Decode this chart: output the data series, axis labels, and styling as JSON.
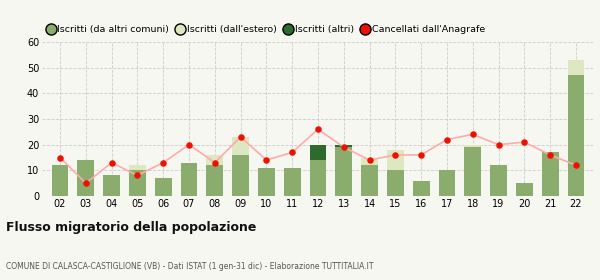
{
  "years": [
    "02",
    "03",
    "04",
    "05",
    "06",
    "07",
    "08",
    "09",
    "10",
    "11",
    "12",
    "13",
    "14",
    "15",
    "16",
    "17",
    "18",
    "19",
    "20",
    "21",
    "22"
  ],
  "iscritti_altri_comuni": [
    12,
    14,
    8,
    10,
    7,
    13,
    12,
    16,
    11,
    11,
    14,
    19,
    12,
    10,
    6,
    10,
    19,
    12,
    5,
    17,
    47
  ],
  "iscritti_estero": [
    0,
    0,
    0,
    2,
    0,
    0,
    4,
    7,
    0,
    0,
    0,
    0,
    3,
    8,
    0,
    0,
    1,
    0,
    0,
    0,
    6
  ],
  "iscritti_altri": [
    0,
    0,
    0,
    0,
    0,
    0,
    0,
    0,
    0,
    0,
    6,
    1,
    0,
    0,
    0,
    0,
    0,
    0,
    0,
    0,
    0
  ],
  "cancellati": [
    15,
    5,
    13,
    8,
    13,
    20,
    13,
    23,
    14,
    17,
    26,
    19,
    14,
    16,
    16,
    22,
    24,
    20,
    21,
    16,
    12
  ],
  "color_altri_comuni": "#8aad6e",
  "color_estero": "#dde8c0",
  "color_altri": "#2d6a2d",
  "color_cancellati": "#ee1100",
  "color_line": "#ffaaaa",
  "background": "#f7f7f2",
  "grid_color": "#cccccc",
  "ylim": [
    0,
    60
  ],
  "yticks": [
    0,
    10,
    20,
    30,
    40,
    50,
    60
  ],
  "title": "Flusso migratorio della popolazione",
  "subtitle": "COMUNE DI CALASCA-CASTIGLIONE (VB) - Dati ISTAT (1 gen-31 dic) - Elaborazione TUTTITALIA.IT",
  "legend_labels": [
    "Iscritti (da altri comuni)",
    "Iscritti (dall'estero)",
    "Iscritti (altri)",
    "Cancellati dall'Anagrafe"
  ]
}
